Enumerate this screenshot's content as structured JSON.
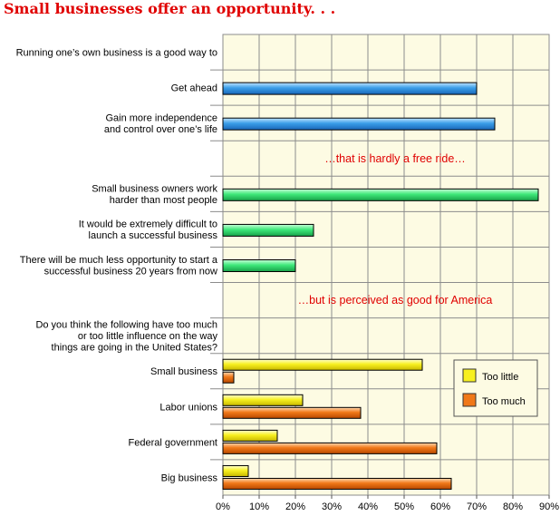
{
  "chart_data": {
    "type": "bar",
    "orientation": "horizontal",
    "title": "Small businesses offer an opportunity. . .",
    "xlim": [
      0,
      90
    ],
    "x_ticks": [
      "0%",
      "10%",
      "20%",
      "30%",
      "40%",
      "50%",
      "60%",
      "70%",
      "80%",
      "90%"
    ],
    "grid": true,
    "rows": [
      {
        "label": "Running one’s own business is a good way to",
        "kind": "header"
      },
      {
        "label": "Get ahead",
        "kind": "single",
        "value": 70,
        "color": "#3a9ee8"
      },
      {
        "label": "Gain more independence\nand control over one’s life",
        "kind": "single",
        "value": 75,
        "color": "#3a9ee8"
      },
      {
        "label": "...that is hardly a free ride...",
        "kind": "note"
      },
      {
        "label": "Small business owners work\nharder than most people",
        "kind": "single",
        "value": 87,
        "color": "#3ee87a"
      },
      {
        "label": "It would be extremely difficult to\nlaunch a successful business",
        "kind": "single",
        "value": 25,
        "color": "#3ee87a"
      },
      {
        "label": "There will be much less opportunity to start a\nsuccessful business 20 years from now",
        "kind": "single",
        "value": 20,
        "color": "#3ee87a"
      },
      {
        "label": "...but is perceived as good for America",
        "kind": "note"
      },
      {
        "label": "Do you think the following have too much\nor too little influence on the way\nthings are going in the United States?",
        "kind": "header"
      },
      {
        "label": "Small business",
        "kind": "pair",
        "too_little": 55,
        "too_much": 3
      },
      {
        "label": "Labor unions",
        "kind": "pair",
        "too_little": 22,
        "too_much": 38
      },
      {
        "label": "Federal government",
        "kind": "pair",
        "too_little": 15,
        "too_much": 59
      },
      {
        "label": "Big business",
        "kind": "pair",
        "too_little": 7,
        "too_much": 63
      }
    ],
    "series": [
      {
        "name": "Too little",
        "color": "#f7f020"
      },
      {
        "name": "Too much",
        "color": "#f07818"
      }
    ],
    "legend_position": "right",
    "plot_background": "#fdfbe3"
  }
}
